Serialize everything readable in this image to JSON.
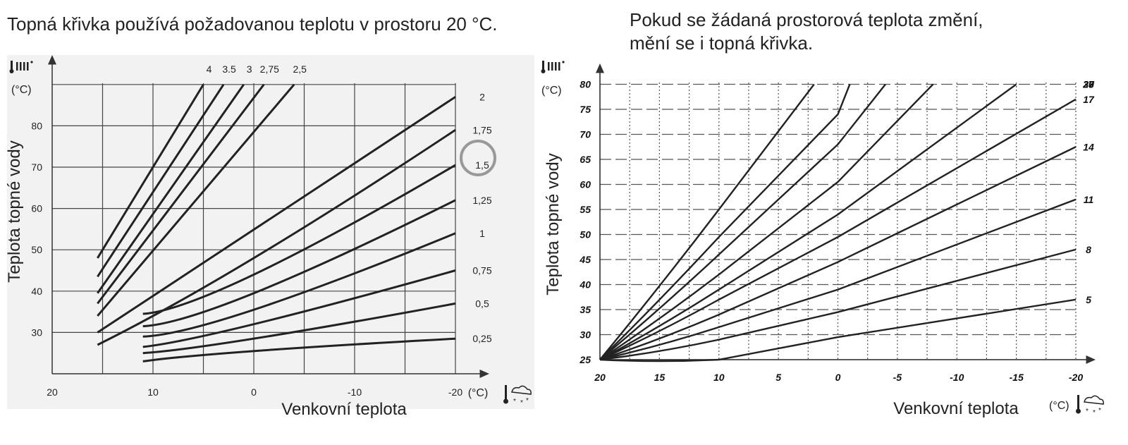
{
  "captions": {
    "left": "Topná křivka používá požadovanou teplotu v prostoru 20 °C.",
    "right_line1": "Pokud se žádaná prostorová teplota změní,",
    "right_line2": "mění se i topná křivka."
  },
  "colors": {
    "curve": "#222222",
    "grid": "#555555",
    "panel_bg": "#f2f2f2",
    "highlight_ring": "#999999"
  },
  "icons": {
    "radiator": "radiator-thermometer-icon",
    "outdoor": "thermometer-snow-cloud-icon"
  },
  "chart_data": [
    {
      "type": "line",
      "title": "",
      "xlabel": "Venkovní teplota",
      "ylabel": "Teplota topné vody",
      "y_unit": "(°C)",
      "x_unit": "(°C)",
      "xlim": [
        20,
        -20
      ],
      "ylim": [
        20,
        90
      ],
      "x_ticks": [
        "20",
        "10",
        "0",
        "-10",
        "-20"
      ],
      "y_ticks": [
        "30",
        "40",
        "50",
        "60",
        "70",
        "80"
      ],
      "grid": true,
      "highlighted_curve": "1,5",
      "series": [
        {
          "name": "4",
          "x": [
            15.5,
            5
          ],
          "y": [
            48,
            90
          ]
        },
        {
          "name": "3.5",
          "x": [
            15.5,
            3
          ],
          "y": [
            43.5,
            90
          ]
        },
        {
          "name": "3",
          "x": [
            15.5,
            1
          ],
          "y": [
            39.5,
            90
          ]
        },
        {
          "name": "2,75",
          "x": [
            15.5,
            -1
          ],
          "y": [
            37,
            90
          ]
        },
        {
          "name": "2,5",
          "x": [
            15.5,
            -4
          ],
          "y": [
            34,
            90
          ]
        },
        {
          "name": "2",
          "x": [
            15.5,
            0,
            -20
          ],
          "y": [
            30,
            55,
            87
          ]
        },
        {
          "name": "1,75",
          "x": [
            15.5,
            0,
            -20
          ],
          "y": [
            27,
            48,
            79
          ]
        },
        {
          "name": "1,5",
          "x": [
            11,
            0,
            -20
          ],
          "y": [
            34.5,
            44,
            70.5
          ]
        },
        {
          "name": "1,25",
          "x": [
            11,
            0,
            -20
          ],
          "y": [
            31.5,
            39.5,
            62
          ]
        },
        {
          "name": "1",
          "x": [
            11,
            0,
            -20
          ],
          "y": [
            29,
            35.5,
            54
          ]
        },
        {
          "name": "0,75",
          "x": [
            11,
            0,
            -20
          ],
          "y": [
            26.5,
            32,
            45
          ]
        },
        {
          "name": "0,5",
          "x": [
            11,
            0,
            -20
          ],
          "y": [
            25,
            28.5,
            37
          ]
        },
        {
          "name": "0,25",
          "x": [
            11,
            0,
            -20
          ],
          "y": [
            23,
            25.5,
            28.5
          ]
        }
      ]
    },
    {
      "type": "line",
      "title": "",
      "xlabel": "Venkovní teplota",
      "ylabel": "Teplota topné vody",
      "y_unit": "(°C)",
      "x_unit": "(°C)",
      "xlim": [
        20,
        -20
      ],
      "ylim": [
        25,
        80
      ],
      "x_ticks": [
        "20",
        "15",
        "10",
        "5",
        "0",
        "-5",
        "-10",
        "-15",
        "-20"
      ],
      "y_ticks": [
        "25",
        "30",
        "35",
        "40",
        "45",
        "50",
        "55",
        "60",
        "65",
        "70",
        "75",
        "80"
      ],
      "grid": true,
      "series": [
        {
          "name": "33",
          "x": [
            20,
            10,
            2
          ],
          "y": [
            25,
            55,
            80
          ]
        },
        {
          "name": "30",
          "x": [
            20,
            10,
            0,
            -1
          ],
          "y": [
            25,
            49.5,
            74,
            80
          ]
        },
        {
          "name": "27",
          "x": [
            20,
            10,
            0,
            -4
          ],
          "y": [
            25,
            46,
            68,
            80
          ]
        },
        {
          "name": "23",
          "x": [
            20,
            10,
            0,
            -8
          ],
          "y": [
            25,
            42,
            60.5,
            80
          ]
        },
        {
          "name": "20",
          "x": [
            20,
            10,
            0,
            -15
          ],
          "y": [
            25,
            39,
            54,
            80
          ]
        },
        {
          "name": "17",
          "x": [
            20,
            10,
            0,
            -20
          ],
          "y": [
            25,
            37,
            49.5,
            77
          ]
        },
        {
          "name": "14",
          "x": [
            20,
            10,
            0,
            -20
          ],
          "y": [
            25,
            34,
            44.5,
            67.5
          ]
        },
        {
          "name": "11",
          "x": [
            20,
            10,
            0,
            -20
          ],
          "y": [
            25,
            31.5,
            39,
            57
          ]
        },
        {
          "name": "8",
          "x": [
            20,
            10,
            0,
            -20
          ],
          "y": [
            25,
            29,
            34.5,
            47
          ]
        },
        {
          "name": "5",
          "x": [
            20,
            10,
            0,
            -20
          ],
          "y": [
            25,
            25,
            29.5,
            37
          ]
        }
      ]
    }
  ]
}
